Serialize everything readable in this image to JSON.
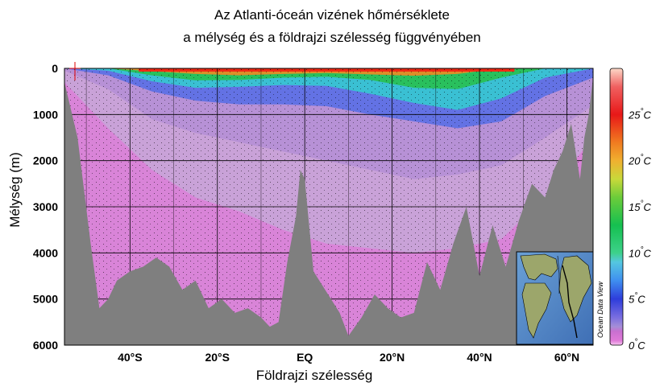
{
  "chart_data": {
    "type": "heatmap",
    "title": "Az Atlanti-óceán vizének hőmérséklete",
    "subtitle": "a mélység és a földrajzi szélesség függvényében",
    "xlabel": "Földrajzi szélesség",
    "ylabel": "Mélység (m)",
    "x_ticks": [
      {
        "value": -40,
        "label": "40°S"
      },
      {
        "value": -20,
        "label": "20°S"
      },
      {
        "value": 0,
        "label": "EQ"
      },
      {
        "value": 20,
        "label": "20°N"
      },
      {
        "value": 40,
        "label": "40°N"
      },
      {
        "value": 60,
        "label": "60°N"
      }
    ],
    "xlim": [
      -55,
      66
    ],
    "y_ticks": [
      0,
      1000,
      2000,
      3000,
      4000,
      5000,
      6000
    ],
    "ylim": [
      6000,
      0
    ],
    "grid": true,
    "colorbar": {
      "unit": "°C",
      "range": [
        0,
        30
      ],
      "ticks": [
        {
          "value": 0,
          "num": "0",
          "unit": "°C"
        },
        {
          "value": 5,
          "num": "5",
          "unit": "°C"
        },
        {
          "value": 10,
          "num": "10",
          "unit": "°C"
        },
        {
          "value": 15,
          "num": "15",
          "unit": "°C"
        },
        {
          "value": 20,
          "num": "20",
          "unit": "°C"
        },
        {
          "value": 25,
          "num": "25",
          "unit": "°C"
        }
      ]
    },
    "isotherm_depths": {
      "lat": [
        -55,
        -45,
        -35,
        -25,
        -15,
        -5,
        5,
        15,
        25,
        35,
        45,
        55,
        66
      ],
      "t20": [
        0,
        0,
        60,
        120,
        150,
        120,
        100,
        130,
        160,
        120,
        0,
        0,
        0
      ],
      "t15": [
        0,
        0,
        150,
        260,
        250,
        200,
        180,
        250,
        420,
        450,
        200,
        0,
        0
      ],
      "t10": [
        0,
        50,
        280,
        420,
        400,
        360,
        380,
        550,
        750,
        900,
        650,
        200,
        0
      ],
      "t5": [
        0,
        150,
        500,
        700,
        780,
        780,
        820,
        1000,
        1150,
        1300,
        1150,
        600,
        200
      ],
      "t3": [
        50,
        450,
        1100,
        1400,
        1600,
        1800,
        2000,
        2200,
        2400,
        2300,
        2100,
        1500,
        800
      ],
      "t2": [
        300,
        1300,
        2200,
        2800,
        3100,
        3500,
        3800,
        3900,
        4000,
        3900,
        3700,
        2800,
        1500
      ]
    },
    "seafloor_depth": {
      "lat": [
        -55,
        -52,
        -49,
        -47,
        -45,
        -43,
        -40,
        -37,
        -34,
        -31,
        -28,
        -25,
        -22,
        -19,
        -16,
        -13,
        -10,
        -8,
        -6,
        -4,
        -2,
        -1,
        0,
        1,
        2,
        4,
        6,
        8,
        10,
        13,
        16,
        19,
        22,
        25,
        28,
        31,
        34,
        37,
        40,
        43,
        46,
        49,
        52,
        55,
        57,
        59,
        61,
        63,
        64,
        65,
        66
      ],
      "depth": [
        300,
        1500,
        3800,
        5200,
        5000,
        4600,
        4400,
        4300,
        4100,
        4300,
        4800,
        4600,
        5200,
        5000,
        5300,
        5200,
        5400,
        5600,
        5500,
        4200,
        3200,
        2200,
        2400,
        3400,
        4400,
        4700,
        5000,
        5300,
        5800,
        5400,
        4900,
        5200,
        5400,
        5300,
        4200,
        4800,
        3800,
        3000,
        4500,
        3400,
        4300,
        3300,
        2500,
        2800,
        2200,
        1800,
        1200,
        2400,
        1500,
        1000,
        200
      ]
    },
    "inset_credit": "Ocean Data View"
  }
}
